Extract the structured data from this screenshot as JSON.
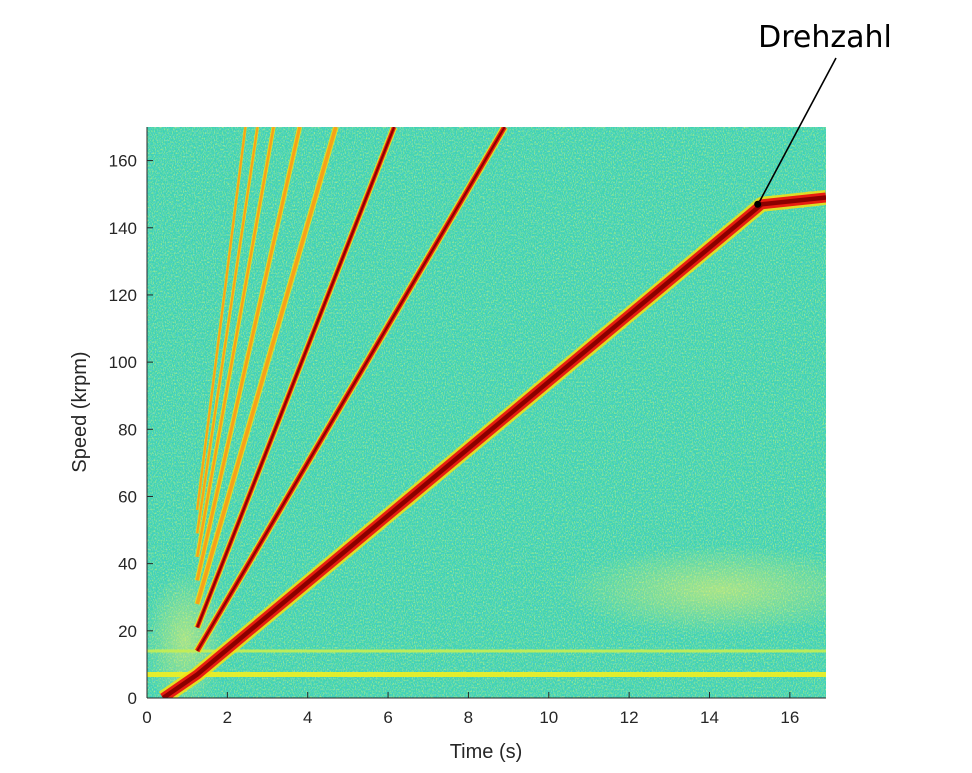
{
  "chart_data": {
    "type": "heatmap",
    "title": "",
    "xlabel": "Time (s)",
    "ylabel": "Speed (krpm)",
    "xlim": [
      0,
      16.9
    ],
    "ylim": [
      0,
      170
    ],
    "xticks": [
      0,
      2,
      4,
      6,
      8,
      10,
      12,
      14,
      16
    ],
    "yticks": [
      0,
      20,
      40,
      60,
      80,
      100,
      120,
      140,
      160
    ],
    "grid": false,
    "colormap": "jet",
    "series": [
      {
        "ridge": "main",
        "points": [
          [
            0.4,
            0
          ],
          [
            1.25,
            7
          ],
          [
            15.3,
            147
          ],
          [
            16.9,
            149
          ]
        ]
      },
      {
        "ridge": "harmonic-2",
        "points": [
          [
            1.25,
            14
          ],
          [
            8.9,
            170
          ]
        ]
      },
      {
        "ridge": "harmonic-3",
        "points": [
          [
            1.25,
            21
          ],
          [
            6.15,
            170
          ]
        ]
      },
      {
        "ridge": "harmonic-4",
        "points": [
          [
            1.25,
            28
          ],
          [
            4.7,
            170
          ]
        ]
      },
      {
        "ridge": "harmonic-5",
        "points": [
          [
            1.25,
            35
          ],
          [
            3.8,
            170
          ]
        ]
      },
      {
        "ridge": "harmonic-6",
        "points": [
          [
            1.25,
            42
          ],
          [
            3.15,
            170
          ]
        ]
      },
      {
        "ridge": "harmonic-7",
        "points": [
          [
            1.25,
            49
          ],
          [
            2.75,
            170
          ]
        ]
      },
      {
        "ridge": "harmonic-8",
        "points": [
          [
            1.25,
            56
          ],
          [
            2.45,
            170
          ]
        ]
      }
    ],
    "horizontal_bands": [
      7,
      14
    ],
    "annotation": {
      "text": "Drehzahl",
      "target": [
        15.2,
        147
      ]
    },
    "colors": {
      "background": "#3fd3b2",
      "noise_blue": "#2fa6dc",
      "noise_yellow": "#b8e85a",
      "ridge_core": "#8b0000",
      "ridge_mid": "#e81d10",
      "ridge_edge": "#f5e10f"
    }
  }
}
